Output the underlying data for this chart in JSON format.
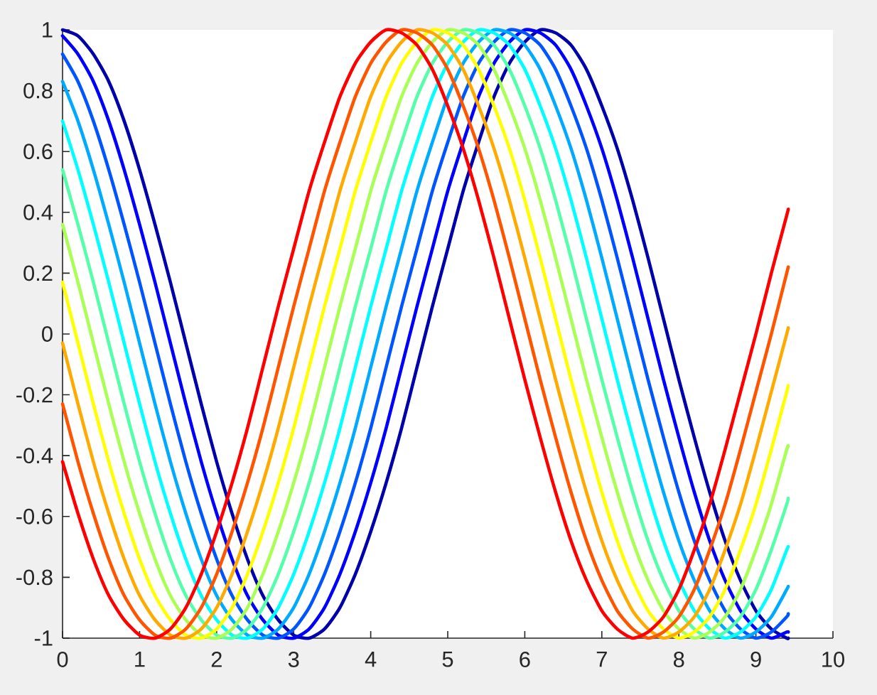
{
  "chart_data": {
    "type": "line",
    "x": [
      0,
      0.2,
      0.4,
      0.6,
      0.8,
      1.0,
      1.2,
      1.4,
      1.6,
      1.8,
      2.0,
      2.2,
      2.4,
      2.6,
      2.8,
      3.0,
      3.2,
      3.4,
      3.6,
      3.8,
      4.0,
      4.2,
      4.4,
      4.6,
      4.8,
      5.0,
      5.2,
      5.4,
      5.6,
      5.8,
      6.0,
      6.2,
      6.4,
      6.6,
      6.8,
      7.0,
      7.2,
      7.4,
      7.6,
      7.8,
      8.0,
      8.2,
      8.4,
      8.6,
      8.8,
      9.0,
      9.2,
      9.4,
      9.42
    ],
    "series": [
      {
        "color": "#0000aa",
        "values": [
          1.0,
          0.98,
          0.92,
          0.83,
          0.7,
          0.54,
          0.36,
          0.17,
          -0.03,
          -0.23,
          -0.42,
          -0.59,
          -0.74,
          -0.86,
          -0.94,
          -0.99,
          -1.0,
          -0.97,
          -0.9,
          -0.79,
          -0.65,
          -0.49,
          -0.31,
          -0.11,
          0.09,
          0.28,
          0.47,
          0.63,
          0.78,
          0.89,
          0.96,
          1.0,
          0.99,
          0.95,
          0.87,
          0.75,
          0.61,
          0.44,
          0.25,
          0.05,
          -0.15,
          -0.34,
          -0.52,
          -0.68,
          -0.81,
          -0.91,
          -0.97,
          -1.0,
          -1.0
        ]
      },
      {
        "color": "#0000ff",
        "values": [
          0.98,
          0.92,
          0.83,
          0.7,
          0.54,
          0.36,
          0.17,
          -0.03,
          -0.23,
          -0.42,
          -0.59,
          -0.74,
          -0.86,
          -0.94,
          -0.99,
          -1.0,
          -0.97,
          -0.9,
          -0.79,
          -0.65,
          -0.49,
          -0.31,
          -0.11,
          0.09,
          0.28,
          0.47,
          0.63,
          0.78,
          0.89,
          0.96,
          1.0,
          0.99,
          0.95,
          0.87,
          0.75,
          0.61,
          0.44,
          0.25,
          0.05,
          -0.15,
          -0.34,
          -0.52,
          -0.68,
          -0.81,
          -0.91,
          -0.97,
          -1.0,
          -0.98,
          -0.98
        ]
      },
      {
        "color": "#0055ff",
        "values": [
          0.92,
          0.83,
          0.7,
          0.54,
          0.36,
          0.17,
          -0.03,
          -0.23,
          -0.42,
          -0.59,
          -0.74,
          -0.86,
          -0.94,
          -0.99,
          -1.0,
          -0.97,
          -0.9,
          -0.79,
          -0.65,
          -0.49,
          -0.31,
          -0.11,
          0.09,
          0.28,
          0.47,
          0.63,
          0.78,
          0.89,
          0.96,
          1.0,
          0.99,
          0.95,
          0.87,
          0.75,
          0.61,
          0.44,
          0.25,
          0.05,
          -0.15,
          -0.34,
          -0.52,
          -0.68,
          -0.81,
          -0.91,
          -0.97,
          -1.0,
          -0.98,
          -0.93,
          -0.92
        ]
      },
      {
        "color": "#00aaff",
        "values": [
          0.83,
          0.7,
          0.54,
          0.36,
          0.17,
          -0.03,
          -0.23,
          -0.42,
          -0.59,
          -0.74,
          -0.86,
          -0.94,
          -0.99,
          -1.0,
          -0.97,
          -0.9,
          -0.79,
          -0.65,
          -0.49,
          -0.31,
          -0.11,
          0.09,
          0.28,
          0.47,
          0.63,
          0.78,
          0.89,
          0.96,
          1.0,
          0.99,
          0.95,
          0.87,
          0.75,
          0.61,
          0.44,
          0.25,
          0.05,
          -0.15,
          -0.34,
          -0.52,
          -0.68,
          -0.81,
          -0.91,
          -0.97,
          -1.0,
          -0.98,
          -0.93,
          -0.84,
          -0.83
        ]
      },
      {
        "color": "#00ffff",
        "values": [
          0.7,
          0.54,
          0.36,
          0.17,
          -0.03,
          -0.23,
          -0.42,
          -0.59,
          -0.74,
          -0.86,
          -0.94,
          -0.99,
          -1.0,
          -0.97,
          -0.9,
          -0.79,
          -0.65,
          -0.49,
          -0.31,
          -0.11,
          0.09,
          0.28,
          0.47,
          0.63,
          0.78,
          0.89,
          0.96,
          1.0,
          0.99,
          0.95,
          0.87,
          0.75,
          0.61,
          0.44,
          0.25,
          0.05,
          -0.15,
          -0.34,
          -0.52,
          -0.68,
          -0.81,
          -0.91,
          -0.97,
          -1.0,
          -0.98,
          -0.93,
          -0.84,
          -0.71,
          -0.7
        ]
      },
      {
        "color": "#55ffaa",
        "values": [
          0.54,
          0.36,
          0.17,
          -0.03,
          -0.23,
          -0.42,
          -0.59,
          -0.74,
          -0.86,
          -0.94,
          -0.99,
          -1.0,
          -0.97,
          -0.9,
          -0.79,
          -0.65,
          -0.49,
          -0.31,
          -0.11,
          0.09,
          0.28,
          0.47,
          0.63,
          0.78,
          0.89,
          0.96,
          1.0,
          0.99,
          0.95,
          0.87,
          0.75,
          0.61,
          0.44,
          0.25,
          0.05,
          -0.15,
          -0.34,
          -0.52,
          -0.68,
          -0.81,
          -0.91,
          -0.97,
          -1.0,
          -0.98,
          -0.93,
          -0.84,
          -0.71,
          -0.56,
          -0.54
        ]
      },
      {
        "color": "#aaff55",
        "values": [
          0.36,
          0.17,
          -0.03,
          -0.23,
          -0.42,
          -0.59,
          -0.74,
          -0.86,
          -0.94,
          -0.99,
          -1.0,
          -0.97,
          -0.9,
          -0.79,
          -0.65,
          -0.49,
          -0.31,
          -0.11,
          0.09,
          0.28,
          0.47,
          0.63,
          0.78,
          0.89,
          0.96,
          1.0,
          0.99,
          0.95,
          0.87,
          0.75,
          0.61,
          0.44,
          0.25,
          0.05,
          -0.15,
          -0.34,
          -0.52,
          -0.68,
          -0.81,
          -0.91,
          -0.97,
          -1.0,
          -0.98,
          -0.93,
          -0.84,
          -0.71,
          -0.56,
          -0.38,
          -0.37
        ]
      },
      {
        "color": "#ffff00",
        "values": [
          0.17,
          -0.03,
          -0.23,
          -0.42,
          -0.59,
          -0.74,
          -0.86,
          -0.94,
          -0.99,
          -1.0,
          -0.97,
          -0.9,
          -0.79,
          -0.65,
          -0.49,
          -0.31,
          -0.11,
          0.09,
          0.28,
          0.47,
          0.63,
          0.78,
          0.89,
          0.96,
          1.0,
          0.99,
          0.95,
          0.87,
          0.75,
          0.61,
          0.44,
          0.25,
          0.05,
          -0.15,
          -0.34,
          -0.52,
          -0.68,
          -0.81,
          -0.91,
          -0.97,
          -1.0,
          -0.98,
          -0.93,
          -0.84,
          -0.71,
          -0.56,
          -0.38,
          -0.19,
          -0.17
        ]
      },
      {
        "color": "#ffaa00",
        "values": [
          -0.03,
          -0.23,
          -0.42,
          -0.59,
          -0.74,
          -0.86,
          -0.94,
          -0.99,
          -1.0,
          -0.97,
          -0.9,
          -0.79,
          -0.65,
          -0.49,
          -0.31,
          -0.11,
          0.09,
          0.28,
          0.47,
          0.63,
          0.78,
          0.89,
          0.96,
          1.0,
          0.99,
          0.95,
          0.87,
          0.75,
          0.61,
          0.44,
          0.25,
          0.05,
          -0.15,
          -0.34,
          -0.52,
          -0.68,
          -0.81,
          -0.91,
          -0.97,
          -1.0,
          -0.98,
          -0.93,
          -0.84,
          -0.71,
          -0.56,
          -0.38,
          -0.19,
          0.0,
          0.02
        ]
      },
      {
        "color": "#ff5500",
        "values": [
          -0.23,
          -0.42,
          -0.59,
          -0.74,
          -0.86,
          -0.94,
          -0.99,
          -1.0,
          -0.97,
          -0.9,
          -0.79,
          -0.65,
          -0.49,
          -0.31,
          -0.11,
          0.09,
          0.28,
          0.47,
          0.63,
          0.78,
          0.89,
          0.96,
          1.0,
          0.99,
          0.95,
          0.87,
          0.75,
          0.61,
          0.44,
          0.25,
          0.05,
          -0.15,
          -0.34,
          -0.52,
          -0.68,
          -0.81,
          -0.91,
          -0.97,
          -1.0,
          -0.98,
          -0.93,
          -0.84,
          -0.71,
          -0.56,
          -0.38,
          -0.19,
          0.0,
          0.2,
          0.22
        ]
      },
      {
        "color": "#ff0000",
        "values": [
          -0.42,
          -0.59,
          -0.74,
          -0.86,
          -0.94,
          -0.99,
          -1.0,
          -0.97,
          -0.9,
          -0.79,
          -0.65,
          -0.49,
          -0.31,
          -0.11,
          0.09,
          0.28,
          0.47,
          0.63,
          0.78,
          0.89,
          0.96,
          1.0,
          0.99,
          0.95,
          0.87,
          0.75,
          0.61,
          0.44,
          0.25,
          0.05,
          -0.15,
          -0.34,
          -0.52,
          -0.68,
          -0.81,
          -0.91,
          -0.97,
          -1.0,
          -0.98,
          -0.93,
          -0.84,
          -0.71,
          -0.56,
          -0.38,
          -0.19,
          0.0,
          0.2,
          0.39,
          0.41
        ]
      }
    ],
    "xlim": [
      0,
      10
    ],
    "ylim": [
      -1,
      1
    ],
    "xticks": [
      0,
      1,
      2,
      3,
      4,
      5,
      6,
      7,
      8,
      9,
      10
    ],
    "yticks": [
      -1,
      -0.8,
      -0.6,
      -0.4,
      -0.2,
      0,
      0.2,
      0.4,
      0.6,
      0.8,
      1
    ]
  }
}
